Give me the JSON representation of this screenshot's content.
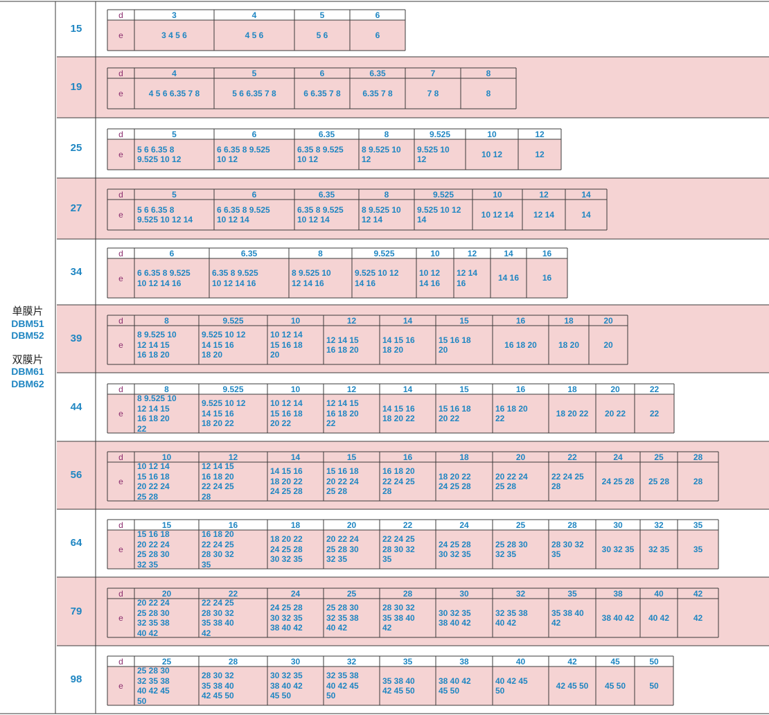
{
  "group_label": {
    "single": {
      "title": "单膜片",
      "models": [
        "DBM51",
        "DBM52"
      ]
    },
    "double": {
      "title": "双膜片",
      "models": [
        "DBM61",
        "DBM62"
      ]
    }
  },
  "row_labels": {
    "d": "d",
    "e": "e"
  },
  "colors": {
    "accent": "#1f86c2",
    "pink": "#f5d3d3",
    "label": "#8b2d6e"
  },
  "rows": [
    {
      "size": "15",
      "cols": [
        {
          "d": "3",
          "e": "3 4 5 6"
        },
        {
          "d": "4",
          "e": "4 5 6"
        },
        {
          "d": "5",
          "e": "5 6"
        },
        {
          "d": "6",
          "e": "6"
        }
      ]
    },
    {
      "size": "19",
      "cols": [
        {
          "d": "4",
          "e": "4 5 6 6.35 7 8"
        },
        {
          "d": "5",
          "e": "5 6 6.35 7 8"
        },
        {
          "d": "6",
          "e": "6 6.35 7 8"
        },
        {
          "d": "6.35",
          "e": "6.35 7 8"
        },
        {
          "d": "7",
          "e": "7 8"
        },
        {
          "d": "8",
          "e": "8"
        }
      ]
    },
    {
      "size": "25",
      "cols": [
        {
          "d": "5",
          "e": "5 6 6.35 8\n9.525 10 12"
        },
        {
          "d": "6",
          "e": "6 6.35 8 9.525\n10 12"
        },
        {
          "d": "6.35",
          "e": "6.35 8 9.525\n10 12"
        },
        {
          "d": "8",
          "e": "8 9.525 10\n12"
        },
        {
          "d": "9.525",
          "e": "9.525 10\n12"
        },
        {
          "d": "10",
          "e": "10 12"
        },
        {
          "d": "12",
          "e": "12"
        }
      ]
    },
    {
      "size": "27",
      "cols": [
        {
          "d": "5",
          "e": "5 6 6.35 8\n9.525 10 12 14"
        },
        {
          "d": "6",
          "e": "6 6.35 8 9.525\n10 12 14"
        },
        {
          "d": "6.35",
          "e": "6.35 8 9.525\n10 12 14"
        },
        {
          "d": "8",
          "e": "8 9.525 10\n12 14"
        },
        {
          "d": "9.525",
          "e": "9.525 10 12\n14"
        },
        {
          "d": "10",
          "e": "10 12 14"
        },
        {
          "d": "12",
          "e": "12 14"
        },
        {
          "d": "14",
          "e": "14"
        }
      ]
    },
    {
      "size": "34",
      "cols": [
        {
          "d": "6",
          "e": "6 6.35 8 9.525\n10 12 14 16"
        },
        {
          "d": "6.35",
          "e": "6.35 8 9.525\n10 12 14 16"
        },
        {
          "d": "8",
          "e": "8 9.525 10\n12 14 16"
        },
        {
          "d": "9.525",
          "e": "9.525 10 12\n14 16"
        },
        {
          "d": "10",
          "e": "10 12\n14 16"
        },
        {
          "d": "12",
          "e": "12 14\n16"
        },
        {
          "d": "14",
          "e": "14 16"
        },
        {
          "d": "16",
          "e": "16"
        }
      ]
    },
    {
      "size": "39",
      "cols": [
        {
          "d": "8",
          "e": "8 9.525 10\n12 14 15\n16 18 20"
        },
        {
          "d": "9.525",
          "e": "9.525 10 12\n14 15 16\n18 20"
        },
        {
          "d": "10",
          "e": "10 12 14\n15 16 18\n20"
        },
        {
          "d": "12",
          "e": "12 14 15\n16 18 20"
        },
        {
          "d": "14",
          "e": "14 15 16\n18 20"
        },
        {
          "d": "15",
          "e": "15 16 18\n20"
        },
        {
          "d": "16",
          "e": "16 18 20"
        },
        {
          "d": "18",
          "e": "18 20"
        },
        {
          "d": "20",
          "e": "20"
        }
      ]
    },
    {
      "size": "44",
      "cols": [
        {
          "d": "8",
          "e": "8 9.525 10\n12 14 15\n16 18 20\n22"
        },
        {
          "d": "9.525",
          "e": "9.525 10 12\n14 15 16\n18 20 22"
        },
        {
          "d": "10",
          "e": "10 12 14\n15 16 18\n20 22"
        },
        {
          "d": "12",
          "e": "12 14 15\n16 18 20\n22"
        },
        {
          "d": "14",
          "e": "14 15 16\n18 20 22"
        },
        {
          "d": "15",
          "e": "15 16 18\n20 22"
        },
        {
          "d": "16",
          "e": "16 18 20\n22"
        },
        {
          "d": "18",
          "e": "18 20 22"
        },
        {
          "d": "20",
          "e": "20 22"
        },
        {
          "d": "22",
          "e": "22"
        }
      ]
    },
    {
      "size": "56",
      "cols": [
        {
          "d": "10",
          "e": "10 12 14\n15 16 18\n20 22 24\n25 28"
        },
        {
          "d": "12",
          "e": "12 14 15\n16 18 20\n22 24 25\n28"
        },
        {
          "d": "14",
          "e": "14 15 16\n18 20 22\n24 25 28"
        },
        {
          "d": "15",
          "e": "15 16 18\n20 22 24\n25 28"
        },
        {
          "d": "16",
          "e": "16 18 20\n22 24 25\n28"
        },
        {
          "d": "18",
          "e": "18 20 22\n24 25 28"
        },
        {
          "d": "20",
          "e": "20 22 24\n25 28"
        },
        {
          "d": "22",
          "e": "22 24 25\n28"
        },
        {
          "d": "24",
          "e": "24 25 28"
        },
        {
          "d": "25",
          "e": "25 28"
        },
        {
          "d": "28",
          "e": "28"
        }
      ]
    },
    {
      "size": "64",
      "cols": [
        {
          "d": "15",
          "e": "15 16 18\n20 22 24\n25 28 30\n32 35"
        },
        {
          "d": "16",
          "e": "16 18 20\n22 24 25\n28 30 32\n35"
        },
        {
          "d": "18",
          "e": "18 20 22\n24 25 28\n30 32 35"
        },
        {
          "d": "20",
          "e": "20 22 24\n25 28 30\n32 35"
        },
        {
          "d": "22",
          "e": "22 24 25\n28 30 32\n35"
        },
        {
          "d": "24",
          "e": "24 25 28\n30 32 35"
        },
        {
          "d": "25",
          "e": "25 28 30\n32 35"
        },
        {
          "d": "28",
          "e": "28 30 32\n35"
        },
        {
          "d": "30",
          "e": "30 32 35"
        },
        {
          "d": "32",
          "e": "32 35"
        },
        {
          "d": "35",
          "e": "35"
        }
      ]
    },
    {
      "size": "79",
      "cols": [
        {
          "d": "20",
          "e": "20 22 24\n25 28 30\n32 35 38\n40 42"
        },
        {
          "d": "22",
          "e": "22 24 25\n28 30 32\n35 38 40\n42"
        },
        {
          "d": "24",
          "e": "24 25 28\n30 32 35\n38 40 42"
        },
        {
          "d": "25",
          "e": "25 28 30\n32 35 38\n40 42"
        },
        {
          "d": "28",
          "e": "28 30 32\n35 38 40\n42"
        },
        {
          "d": "30",
          "e": "30 32 35\n38 40 42"
        },
        {
          "d": "32",
          "e": "32 35 38\n40 42"
        },
        {
          "d": "35",
          "e": "35 38 40\n42"
        },
        {
          "d": "38",
          "e": "38 40 42"
        },
        {
          "d": "40",
          "e": "40 42"
        },
        {
          "d": "42",
          "e": "42"
        }
      ]
    },
    {
      "size": "98",
      "cols": [
        {
          "d": "25",
          "e": "25 28 30\n32 35 38\n40 42 45\n50"
        },
        {
          "d": "28",
          "e": "28 30 32\n35 38 40\n42 45 50"
        },
        {
          "d": "30",
          "e": "30 32 35\n38 40 42\n45 50"
        },
        {
          "d": "32",
          "e": "32 35 38\n40 42 45\n50"
        },
        {
          "d": "35",
          "e": "35 38 40\n42 45 50"
        },
        {
          "d": "38",
          "e": "38 40 42\n45 50"
        },
        {
          "d": "40",
          "e": "40 42 45\n50"
        },
        {
          "d": "42",
          "e": "42 45 50"
        },
        {
          "d": "45",
          "e": "45 50"
        },
        {
          "d": "50",
          "e": "50"
        }
      ]
    }
  ]
}
